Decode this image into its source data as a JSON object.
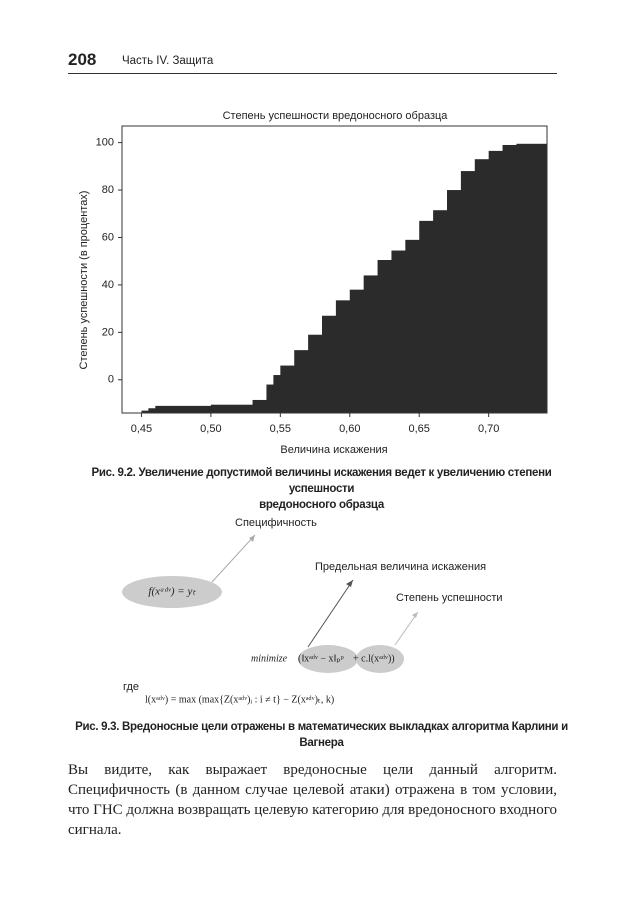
{
  "header": {
    "page_number": "208",
    "section": "Часть IV. Защита"
  },
  "chart_data": {
    "type": "step-area",
    "title": "Степень успешности вредоносного образца",
    "x_label": "Величина искажения",
    "y_label": "Степень успешности (в процентах)",
    "color": "#2b2b2b",
    "x": [
      0.45,
      0.455,
      0.46,
      0.48,
      0.5,
      0.53,
      0.54,
      0.545,
      0.55,
      0.56,
      0.57,
      0.58,
      0.59,
      0.6,
      0.61,
      0.62,
      0.63,
      0.64,
      0.65,
      0.66,
      0.67,
      0.68,
      0.69,
      0.7,
      0.71,
      0.72
    ],
    "values": [
      -13,
      -12,
      -11,
      -11,
      -10.5,
      -8.5,
      -2,
      2,
      6,
      12.5,
      19,
      27,
      33.5,
      38,
      44,
      50.5,
      54.5,
      59,
      67,
      71.5,
      80,
      88,
      93,
      96.5,
      99,
      99.5
    ],
    "xlim": [
      0.436,
      0.742
    ],
    "ylim": [
      -14,
      107
    ],
    "xticks": [
      {
        "value": 0.45,
        "label": "0,45"
      },
      {
        "value": 0.5,
        "label": "0,50"
      },
      {
        "value": 0.55,
        "label": "0,55"
      },
      {
        "value": 0.6,
        "label": "0,60"
      },
      {
        "value": 0.65,
        "label": "0,65"
      },
      {
        "value": 0.7,
        "label": "0,70"
      }
    ],
    "yticks": [
      0,
      20,
      40,
      60,
      80,
      100
    ]
  },
  "figure_1_caption": {
    "label": "Рис. 9.2.",
    "line1": "Увеличение допустимой величины искажения ведет к увеличению степени успешности",
    "line2": "вредоносного образца"
  },
  "diagram": {
    "specificity": "Специфичность",
    "target_formula": "f(xᵃᵈᵛ) = yₜ",
    "distortion": "Предельная величина искажения",
    "success": "Степень успешности",
    "minimize": "minimize",
    "norm_term": "(‖xᵃᵈᵛ − x‖ₚᵖ",
    "loss_term": "+ c.l(xᵃᵈᵛ))",
    "where": "где",
    "loss_formula": "l(xᵃᵈᵛ) = max (max{Z(xᵃᵈᵛ)ᵢ : i ≠ t} − Z(xᵃᵈᵛ)ₜ, k)"
  },
  "figure_2_caption": {
    "label": "Рис. 9.3.",
    "text": "Вредоносные цели отражены в математических выкладках алгоритма Карлини и Вагнера"
  },
  "body": {
    "paragraph": "Вы видите, как выражает вредоносные цели данный алгоритм. Специфичность (в данном случае целевой атаки) отражена в том условии, что ГНС должна возвращать целевую категорию для вредоносного входного сигнала."
  }
}
